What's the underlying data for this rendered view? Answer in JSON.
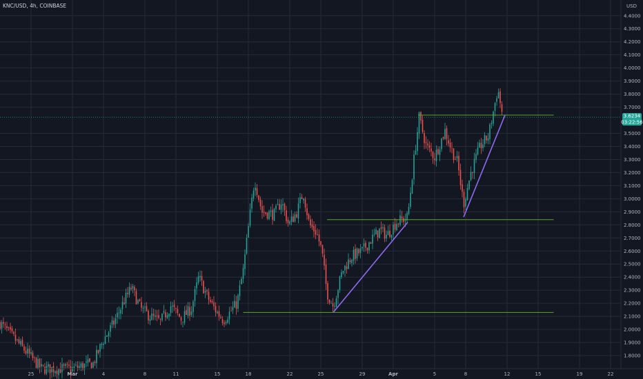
{
  "chart_data": {
    "type": "candlestick",
    "title": "KNC/USD, 4h, COINBASE",
    "unit": "USD",
    "colors": {
      "background": "#131722",
      "grid": "#262b38",
      "up": "#26a69a",
      "down": "#ef5350",
      "support_line": "#5ea62f",
      "trend_line": "#8f6bf0",
      "price_tag": "#26a69a"
    },
    "y_ticks": [
      "4.4000",
      "4.3000",
      "4.2000",
      "4.1000",
      "4.0000",
      "3.9000",
      "3.8000",
      "3.7000",
      "3.5000",
      "3.4000",
      "3.3000",
      "3.2000",
      "3.1000",
      "3.0000",
      "2.9000",
      "2.8000",
      "2.7000",
      "2.6000",
      "2.5000",
      "2.4000",
      "2.3000",
      "2.2000",
      "2.1000",
      "2.0000",
      "1.9000",
      "1.8000"
    ],
    "ylim": [
      1.7,
      4.52
    ],
    "x_ticks": [
      {
        "label": "25",
        "day": -4
      },
      {
        "label": "Mar",
        "day": 0,
        "bold": true
      },
      {
        "label": "4",
        "day": 3
      },
      {
        "label": "8",
        "day": 7
      },
      {
        "label": "11",
        "day": 10
      },
      {
        "label": "15",
        "day": 14
      },
      {
        "label": "18",
        "day": 17
      },
      {
        "label": "22",
        "day": 21
      },
      {
        "label": "25",
        "day": 24
      },
      {
        "label": "29",
        "day": 28
      },
      {
        "label": "Apr",
        "day": 31,
        "bold": true
      },
      {
        "label": "5",
        "day": 35
      },
      {
        "label": "8",
        "day": 38
      },
      {
        "label": "12",
        "day": 42
      },
      {
        "label": "15",
        "day": 45
      },
      {
        "label": "19",
        "day": 49
      },
      {
        "label": "22",
        "day": 52
      }
    ],
    "xlim": [
      -7,
      53
    ],
    "last_price": {
      "value": "3.6234",
      "countdown": "03:22:56",
      "price": 3.6234
    },
    "closes": [
      [
        -7,
        2.05
      ],
      [
        -3,
        1.7
      ],
      [
        0,
        1.7
      ],
      [
        2,
        1.74
      ],
      [
        3,
        1.92
      ],
      [
        4,
        2.05
      ],
      [
        5,
        2.22
      ],
      [
        5.7,
        2.32
      ],
      [
        6.6,
        2.16
      ],
      [
        7.5,
        2.1
      ],
      [
        8.5,
        2.06
      ],
      [
        9.5,
        2.18
      ],
      [
        10.5,
        2.08
      ],
      [
        11.5,
        2.16
      ],
      [
        12.2,
        2.4
      ],
      [
        13.1,
        2.24
      ],
      [
        13.8,
        2.15
      ],
      [
        14.6,
        2.07
      ],
      [
        15.3,
        2.14
      ],
      [
        15.9,
        2.2
      ],
      [
        16.5,
        2.45
      ],
      [
        17,
        2.78
      ],
      [
        17.6,
        3.15
      ],
      [
        18.3,
        2.9
      ],
      [
        19.5,
        2.88
      ],
      [
        20.2,
        2.98
      ],
      [
        20.9,
        2.8
      ],
      [
        21.7,
        2.9
      ],
      [
        22.3,
        3.05
      ],
      [
        22.9,
        2.8
      ],
      [
        23.6,
        2.74
      ],
      [
        24.1,
        2.6
      ],
      [
        24.6,
        2.28
      ],
      [
        25.2,
        2.18
      ],
      [
        26.1,
        2.45
      ],
      [
        27,
        2.56
      ],
      [
        28,
        2.6
      ],
      [
        29,
        2.7
      ],
      [
        29.7,
        2.76
      ],
      [
        30.4,
        2.72
      ],
      [
        31.3,
        2.82
      ],
      [
        32.4,
        2.86
      ],
      [
        33,
        3.3
      ],
      [
        33.5,
        3.62
      ],
      [
        34.2,
        3.4
      ],
      [
        35,
        3.32
      ],
      [
        36,
        3.52
      ],
      [
        36.6,
        3.38
      ],
      [
        37.2,
        3.28
      ],
      [
        37.8,
        2.96
      ],
      [
        38.5,
        3.2
      ],
      [
        39.4,
        3.4
      ],
      [
        40.2,
        3.48
      ],
      [
        40.7,
        3.68
      ],
      [
        41.1,
        3.84
      ],
      [
        41.6,
        3.62
      ]
    ],
    "green_lines": [
      {
        "day0": 33.4,
        "day1": 46.5,
        "y": 3.64
      },
      {
        "day0": 24.6,
        "day1": 46.5,
        "y": 2.84
      },
      {
        "day0": 16.5,
        "day1": 46.5,
        "y": 2.13
      }
    ],
    "purple_lines": [
      {
        "day0": 25.2,
        "y0": 2.13,
        "day1": 32.4,
        "y1": 2.82
      },
      {
        "day0": 37.8,
        "y0": 2.86,
        "day1": 41.8,
        "y1": 3.64
      }
    ]
  }
}
